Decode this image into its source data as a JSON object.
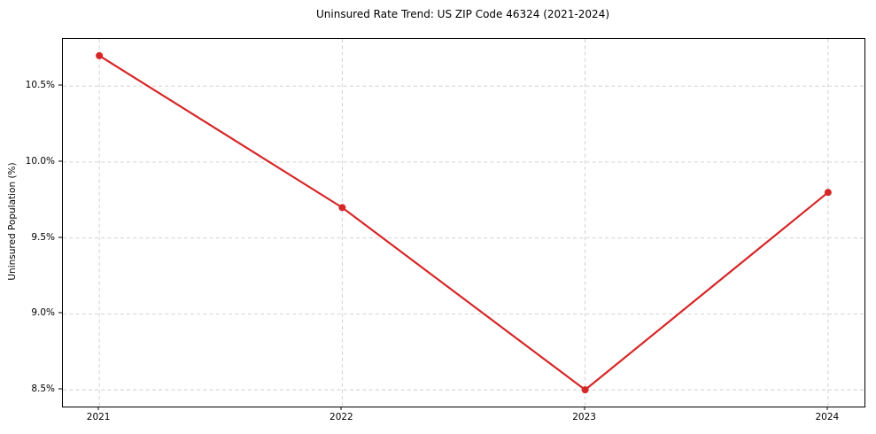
{
  "chart_data": {
    "type": "line",
    "title": "Uninsured Rate Trend: US ZIP Code 46324 (2021-2024)",
    "xlabel": "",
    "ylabel": "Uninsured Population (%)",
    "x": [
      2021,
      2022,
      2023,
      2024
    ],
    "series": [
      {
        "name": "Uninsured Rate",
        "values": [
          10.7,
          9.7,
          8.5,
          9.8
        ]
      }
    ],
    "x_tick_labels": [
      "2021",
      "2022",
      "2023",
      "2024"
    ],
    "y_ticks": [
      8.5,
      9.0,
      9.5,
      10.0,
      10.5
    ],
    "y_tick_labels": [
      "8.5%",
      "9.0%",
      "9.5%",
      "10.0%",
      "10.5%"
    ],
    "xlim": [
      2020.85,
      2024.15
    ],
    "ylim": [
      8.39,
      10.81
    ],
    "grid": true,
    "legend": "none",
    "line_color": "#d62728",
    "marker_color": "#d62728",
    "grid_color": "#cccccc",
    "spine_color": "#000000",
    "background_color": "#ffffff"
  }
}
